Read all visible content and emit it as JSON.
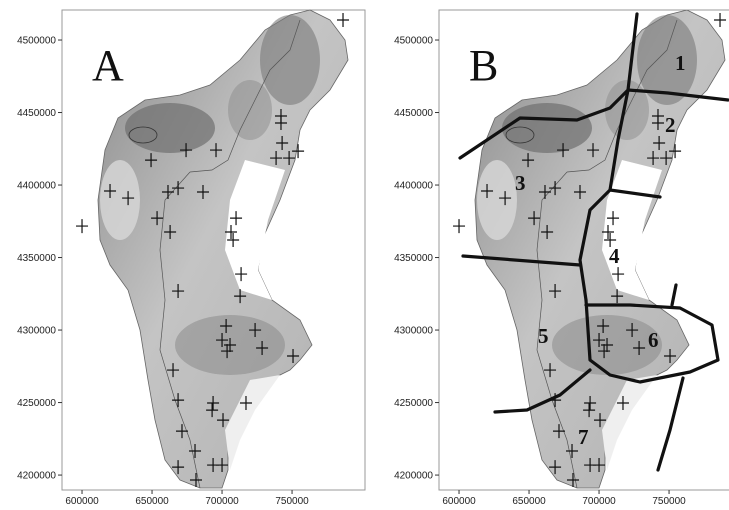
{
  "panels": [
    {
      "label": "A"
    },
    {
      "label": "B",
      "regions": [
        "1",
        "2",
        "3",
        "4",
        "5",
        "6",
        "7"
      ]
    }
  ],
  "x_axis": {
    "lim": [
      585700,
      802100
    ],
    "ticks": [
      600000,
      650000,
      700000,
      750000
    ]
  },
  "y_axis": {
    "lim": [
      4189700,
      4520700
    ],
    "ticks": [
      4200000,
      4250000,
      4300000,
      4350000,
      4400000,
      4450000,
      4500000
    ]
  },
  "stations": {
    "x": [
      786400,
      742100,
      742100,
      742900,
      738600,
      747900,
      754300,
      649300,
      674300,
      695700,
      620000,
      632900,
      661400,
      668600,
      686400,
      600000,
      653600,
      662900,
      710000,
      706400,
      707900,
      713600,
      668600,
      712900,
      702900,
      700000,
      705700,
      703600,
      723600,
      728600,
      750700,
      665000,
      668600,
      671400,
      693600,
      692900,
      700700,
      717100,
      680700,
      668600,
      693600,
      700000,
      681400
    ],
    "y": [
      4513800,
      4447600,
      4442800,
      4429000,
      4418600,
      4418600,
      4423400,
      4417200,
      4424100,
      4424100,
      4395900,
      4391000,
      4395200,
      4397900,
      4395200,
      4371700,
      4377200,
      4367600,
      4377200,
      4367600,
      4362100,
      4338600,
      4326900,
      4323400,
      4302800,
      4293100,
      4289700,
      4285500,
      4300000,
      4287600,
      4282100,
      4272400,
      4251700,
      4230300,
      4249700,
      4244800,
      4237900,
      4249700,
      4216600,
      4205500,
      4206900,
      4206900,
      4196600
    ]
  }
}
